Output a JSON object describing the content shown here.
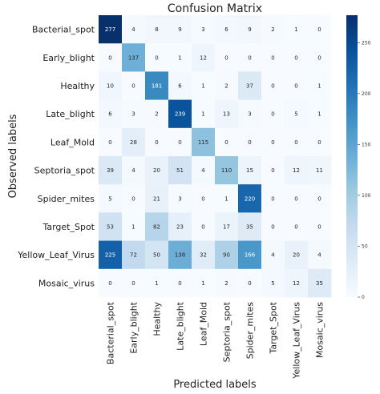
{
  "chart_data": {
    "type": "heatmap",
    "title": "Confusion Matrix",
    "xlabel": "Predicted labels",
    "ylabel": "Observed labels",
    "x_categories": [
      "Bacterial_spot",
      "Early_blight",
      "Healthy",
      "Late_blight",
      "Leaf_Mold",
      "Septoria_spot",
      "Spider_mites",
      "Target_Spot",
      "Yellow_Leaf_Virus",
      "Mosaic_virus"
    ],
    "y_categories": [
      "Bacterial_spot",
      "Early_blight",
      "Healthy",
      "Late_blight",
      "Leaf_Mold",
      "Septoria_spot",
      "Spider_mites",
      "Target_Spot",
      "Yellow_Leaf_Virus",
      "Mosaic_virus"
    ],
    "values": [
      [
        277,
        4,
        8,
        9,
        3,
        6,
        9,
        2,
        1,
        0
      ],
      [
        0,
        137,
        0,
        1,
        12,
        0,
        0,
        0,
        0,
        0
      ],
      [
        10,
        0,
        181,
        6,
        1,
        2,
        37,
        0,
        0,
        1
      ],
      [
        6,
        3,
        2,
        239,
        1,
        13,
        3,
        0,
        5,
        1
      ],
      [
        0,
        28,
        0,
        0,
        115,
        0,
        0,
        0,
        0,
        0
      ],
      [
        39,
        4,
        20,
        51,
        4,
        110,
        15,
        0,
        12,
        11
      ],
      [
        5,
        0,
        21,
        3,
        0,
        1,
        220,
        0,
        0,
        0
      ],
      [
        53,
        1,
        82,
        23,
        0,
        17,
        35,
        0,
        0,
        0
      ],
      [
        225,
        72,
        50,
        138,
        32,
        90,
        166,
        4,
        20,
        4
      ],
      [
        0,
        0,
        1,
        0,
        1,
        2,
        0,
        5,
        12,
        35
      ]
    ],
    "colorbar": {
      "colormap": "Blues",
      "vmin": 0,
      "vmax": 277,
      "ticks": [
        0,
        50,
        100,
        150,
        200,
        250
      ]
    },
    "grid": false
  }
}
